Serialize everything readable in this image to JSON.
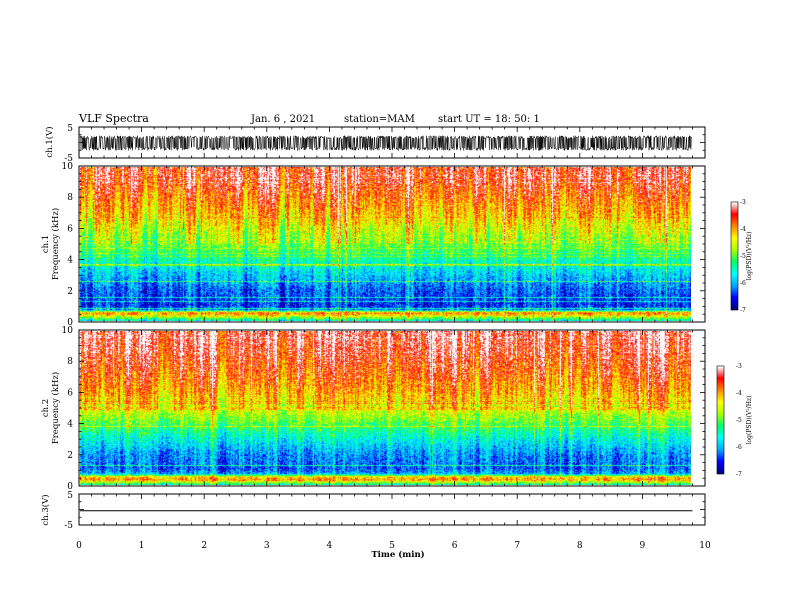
{
  "header": {
    "title": "VLF Spectra",
    "date": "Jan. 6 , 2021",
    "station": "station=MAM",
    "start_ut": "start UT =   18: 50: 1"
  },
  "chart_data": [
    {
      "type": "line",
      "name": "ch.1 waveform",
      "ylabel": "ch.1(V)",
      "ylim": [
        -5,
        5
      ],
      "yticks": [
        "5",
        "-5"
      ],
      "xlim": [
        0,
        10
      ],
      "data_end_min": 9.8,
      "amplitude_range_v": [
        -2.6,
        2.2
      ],
      "color": "#000000"
    },
    {
      "type": "heatmap",
      "name": "ch.1 spectrogram",
      "ylabel": "ch.1",
      "ylabel2": "Frequency (kHz)",
      "ylim": [
        0,
        10
      ],
      "yticks": [
        "0",
        "2",
        "4",
        "6",
        "8",
        "10"
      ],
      "xlim": [
        0,
        10
      ],
      "data_end_min": 9.8,
      "colorbar": {
        "label": "log(PSD)(V²/Hz)",
        "range": [
          -7,
          -3
        ],
        "ticks": [
          "-3",
          "-4",
          "-5",
          "-6",
          "-7"
        ]
      },
      "profile_freq_khz": [
        0,
        0.3,
        0.5,
        0.7,
        1,
        2,
        3,
        4,
        5,
        6,
        7,
        8,
        9,
        10
      ],
      "profile_log_psd": [
        -5.6,
        -4.4,
        -3.8,
        -6.2,
        -6.5,
        -6.3,
        -5.9,
        -5.4,
        -4.9,
        -4.5,
        -4.1,
        -3.8,
        -3.5,
        -3.4
      ]
    },
    {
      "type": "heatmap",
      "name": "ch.2 spectrogram",
      "ylabel": "ch.2",
      "ylabel2": "Frequency (kHz)",
      "ylim": [
        0,
        10
      ],
      "yticks": [
        "0",
        "2",
        "4",
        "6",
        "8",
        "10"
      ],
      "xlim": [
        0,
        10
      ],
      "data_end_min": 9.8,
      "colorbar": {
        "label": "log(PSD)(V²/Hz)",
        "range": [
          -7,
          -3
        ],
        "ticks": [
          "-3",
          "-4",
          "-5",
          "-6",
          "-7"
        ]
      },
      "profile_freq_khz": [
        0,
        0.3,
        0.5,
        0.7,
        1,
        2,
        3,
        4,
        5,
        6,
        7,
        8,
        9,
        10
      ],
      "profile_log_psd": [
        -5.4,
        -3.9,
        -4.2,
        -6.0,
        -6.3,
        -6.1,
        -5.6,
        -5.0,
        -4.4,
        -4.0,
        -3.7,
        -3.5,
        -3.3,
        -3.2
      ]
    },
    {
      "type": "line",
      "name": "ch.3 waveform",
      "ylabel": "ch.3(V)",
      "ylim": [
        -5,
        5
      ],
      "yticks": [
        "5",
        "-5"
      ],
      "xlim": [
        0,
        10
      ],
      "data_end_min": 9.8,
      "value_v": -0.4,
      "color": "#000000"
    }
  ],
  "xaxis": {
    "label": "Time (min)",
    "ticks": [
      "0",
      "1",
      "2",
      "3",
      "4",
      "5",
      "6",
      "7",
      "8",
      "9",
      "10"
    ]
  },
  "colormap": [
    "#000080",
    "#0000ff",
    "#00aaff",
    "#00ffff",
    "#00ff66",
    "#aaff00",
    "#ffff00",
    "#ff8800",
    "#ff0000",
    "#ffffff"
  ]
}
